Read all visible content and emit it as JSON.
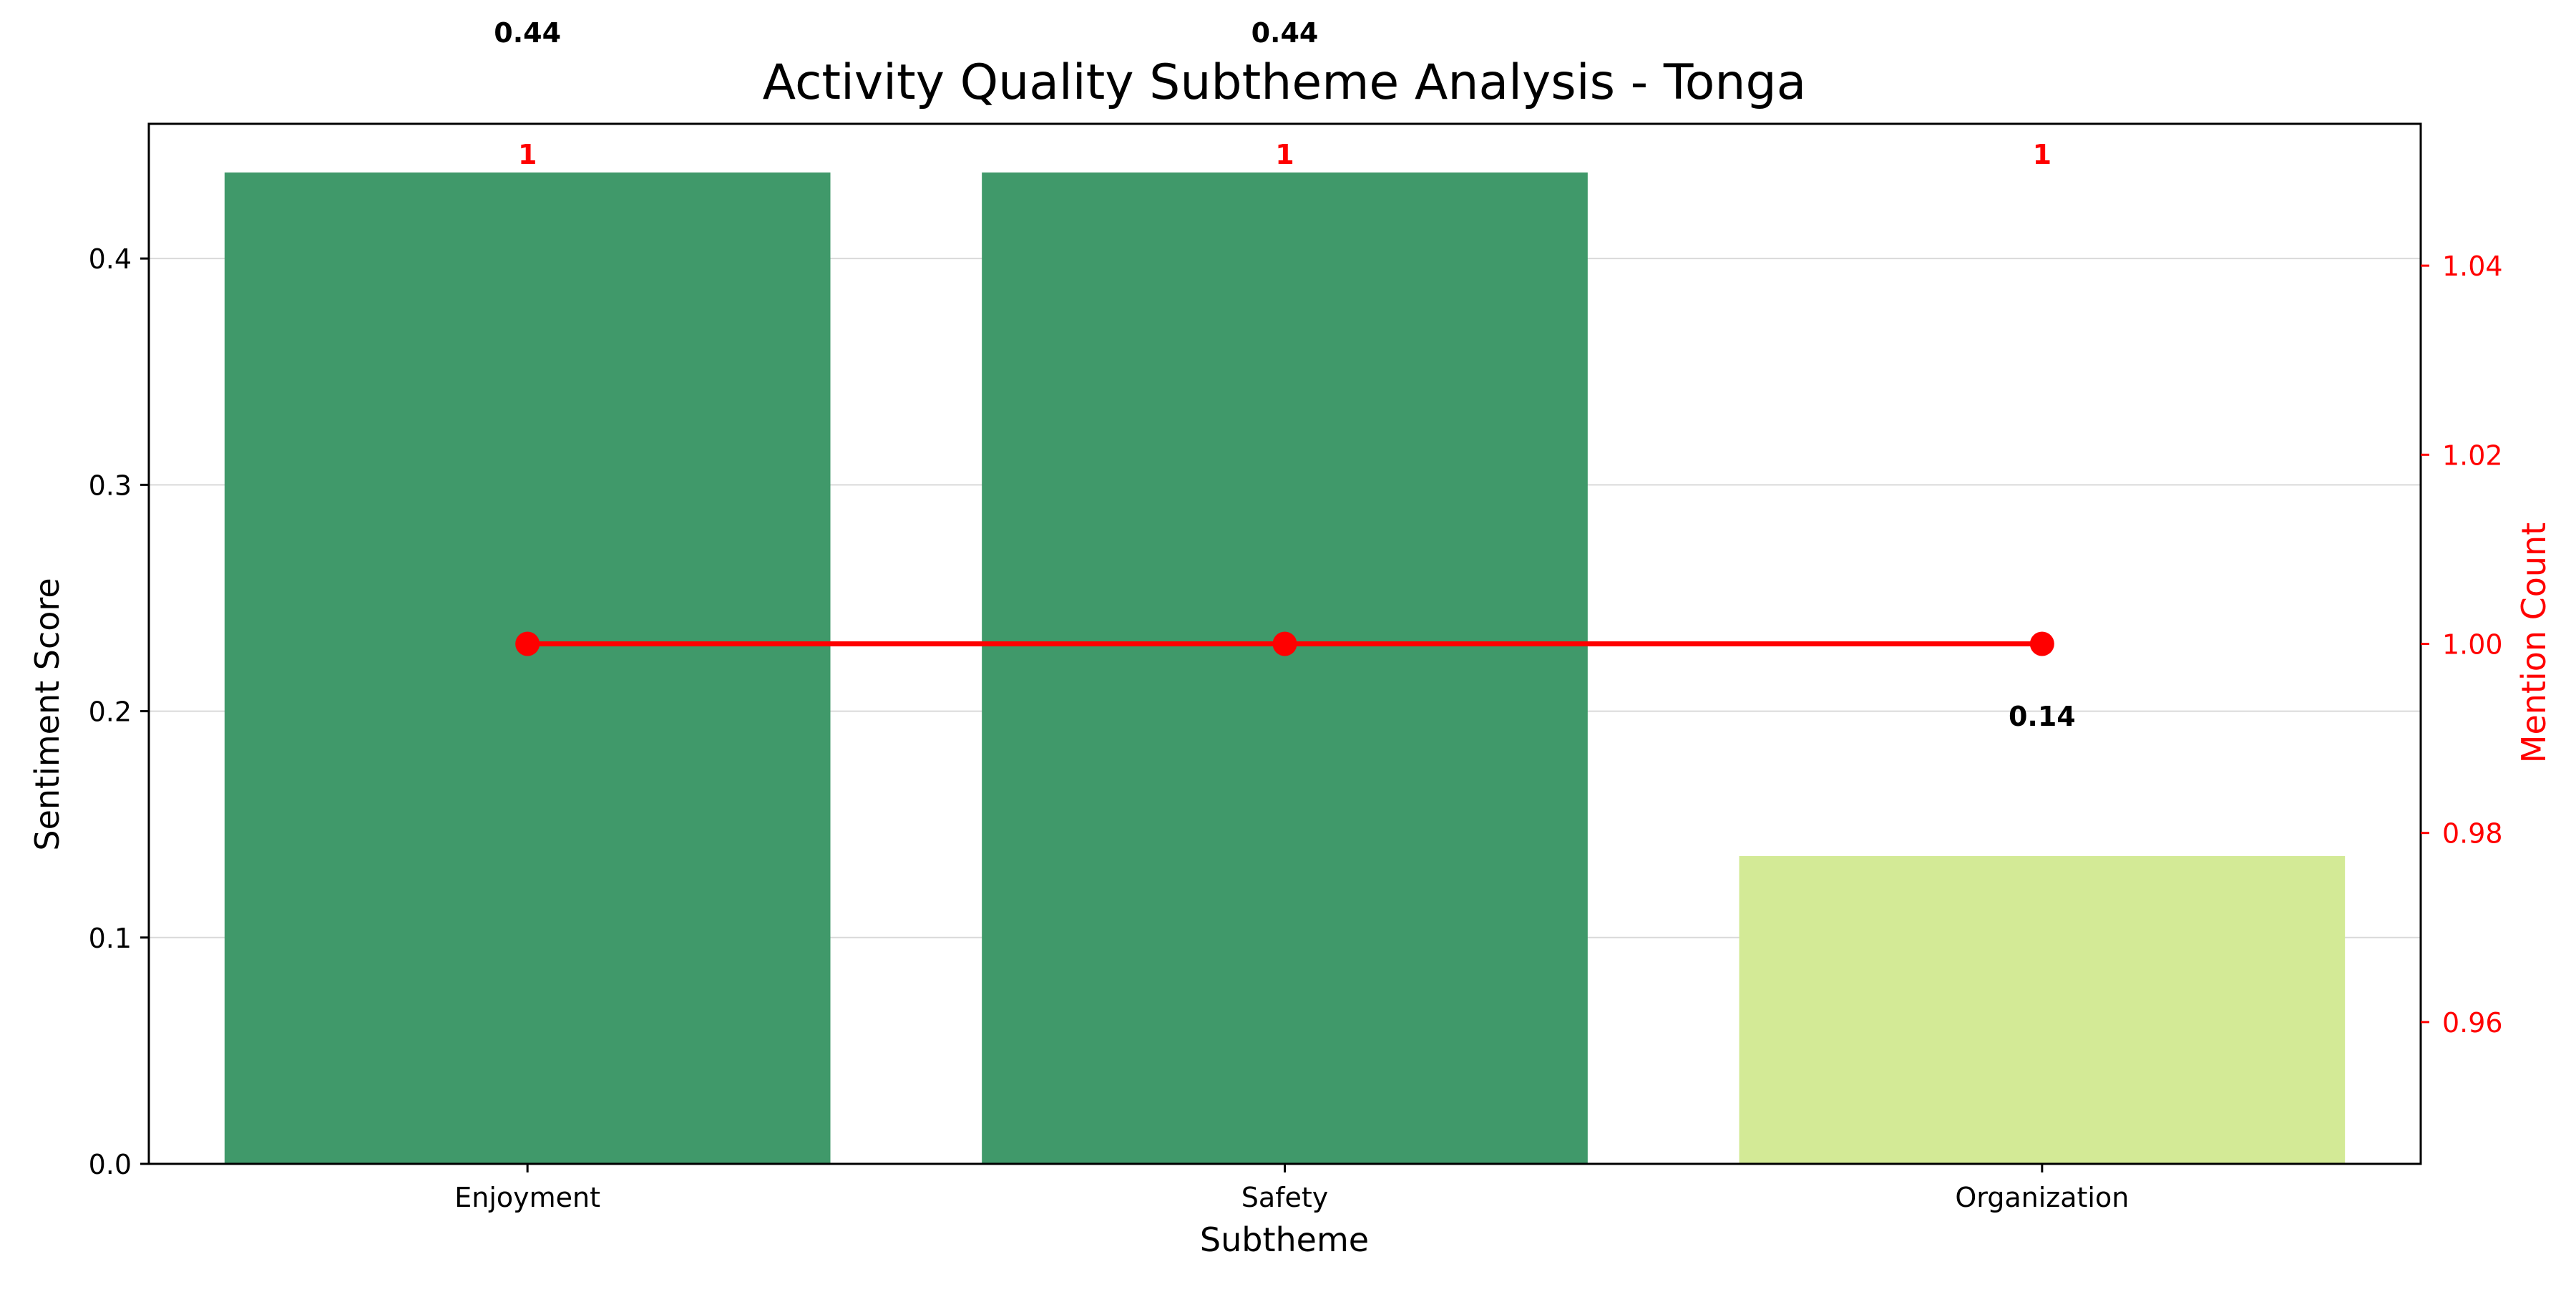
{
  "chart_data": {
    "type": "bar",
    "title": "Activity Quality Subtheme Analysis - Tonga",
    "xlabel": "Subtheme",
    "ylabel": "Sentiment Score",
    "y2label": "Mention Count",
    "categories": [
      "Enjoyment",
      "Safety",
      "Organization"
    ],
    "series": [
      {
        "type": "bar",
        "values": [
          0.438,
          0.438,
          0.136
        ],
        "labels": [
          "0.44",
          "0.44",
          "0.14"
        ],
        "colors": [
          "#40996a",
          "#40996a",
          "#d3ea96"
        ],
        "axis": "left"
      },
      {
        "type": "line",
        "values": [
          1,
          1,
          1
        ],
        "labels": [
          "1",
          "1",
          "1"
        ],
        "color": "#ff0000",
        "axis": "right"
      }
    ],
    "ylim": [
      0,
      0.4595
    ],
    "yticks": [
      0.0,
      0.1,
      0.2,
      0.3,
      0.4
    ],
    "ytick_labels": [
      "0.0",
      "0.1",
      "0.2",
      "0.3",
      "0.4"
    ],
    "y2lim": [
      0.945,
      1.055
    ],
    "y2ticks": [
      0.96,
      0.98,
      1.0,
      1.02,
      1.04
    ],
    "y2tick_labels": [
      "0.96",
      "0.98",
      "1.00",
      "1.02",
      "1.04"
    ],
    "grid": true
  }
}
